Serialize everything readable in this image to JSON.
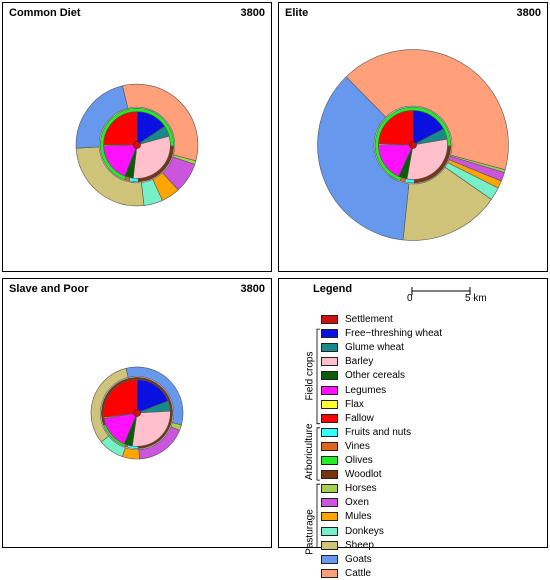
{
  "categories": [
    {
      "key": "settlement",
      "label": "Settlement",
      "color": "#cc1111"
    },
    {
      "key": "free_wheat",
      "label": "Free−threshing wheat",
      "color": "#0a10e0"
    },
    {
      "key": "glume_wheat",
      "label": "Glume wheat",
      "color": "#178a8a"
    },
    {
      "key": "barley",
      "label": "Barley",
      "color": "#ffc0cb"
    },
    {
      "key": "other_cereals",
      "label": "Other cereals",
      "color": "#0a5c0a"
    },
    {
      "key": "legumes",
      "label": "Legumes",
      "color": "#ff10ff"
    },
    {
      "key": "flax",
      "label": "Flax",
      "color": "#ffff33"
    },
    {
      "key": "fallow",
      "label": "Fallow",
      "color": "#ff0000"
    },
    {
      "key": "fruits",
      "label": "Fruits and nuts",
      "color": "#33ffff"
    },
    {
      "key": "vines",
      "label": "Vines",
      "color": "#e06620"
    },
    {
      "key": "olives",
      "label": "Olives",
      "color": "#22ee22"
    },
    {
      "key": "woodlot",
      "label": "Woodlot",
      "color": "#7a3410"
    },
    {
      "key": "horses",
      "label": "Horses",
      "color": "#a8d050"
    },
    {
      "key": "oxen",
      "label": "Oxen",
      "color": "#cc55dd"
    },
    {
      "key": "mules",
      "label": "Mules",
      "color": "#ffa500"
    },
    {
      "key": "donkeys",
      "label": "Donkeys",
      "color": "#77f0c8"
    },
    {
      "key": "sheep",
      "label": "Sheep",
      "color": "#d0c47a"
    },
    {
      "key": "goats",
      "label": "Goats",
      "color": "#6699ee"
    },
    {
      "key": "cattle",
      "label": "Cattle",
      "color": "#ffa07a"
    }
  ],
  "legend": {
    "title": "Legend",
    "scale_start": "0",
    "scale_end": "5 km",
    "groups": [
      {
        "label": "Field crops",
        "from": "free_wheat",
        "to": "fallow"
      },
      {
        "label": "Arboriculture",
        "from": "fruits",
        "to": "woodlot"
      },
      {
        "label": "Pasturage",
        "from": "horses",
        "to": "cattle"
      }
    ]
  },
  "panels": [
    {
      "title": "Common Diet",
      "year": "3800",
      "inner_radius_km": 2.9,
      "tree_ring_km": 3.2,
      "outer_radius_km": 5.3,
      "field_crops": {
        "free_wheat": 15,
        "glume_wheat": 5,
        "barley": 30,
        "other_cereals": 4,
        "legumes": 18,
        "flax": 0.5,
        "fallow": 24
      },
      "arboriculture": {
        "fruits": 4,
        "vines": 2,
        "olives": 70,
        "woodlot": 24
      },
      "pasturage": {
        "horses": 1,
        "oxen": 8,
        "mules": 5,
        "donkeys": 5,
        "sheep": 26,
        "goats": 22,
        "cattle": 33
      }
    },
    {
      "title": "Elite",
      "year": "3800",
      "inner_radius_km": 3.0,
      "tree_ring_km": 3.3,
      "outer_radius_km": 8.3,
      "field_crops": {
        "free_wheat": 17,
        "glume_wheat": 5,
        "barley": 30,
        "other_cereals": 4,
        "legumes": 18,
        "flax": 0.5,
        "fallow": 24
      },
      "arboriculture": {
        "fruits": 4,
        "vines": 2,
        "olives": 70,
        "woodlot": 24
      },
      "pasturage": {
        "horses": 0.5,
        "oxen": 1.5,
        "mules": 1.3,
        "donkeys": 2.2,
        "sheep": 17,
        "goats": 36,
        "cattle": 41.5
      }
    },
    {
      "title": "Slave and Poor",
      "year": "3800",
      "inner_radius_km": 2.9,
      "tree_ring_km": 3.1,
      "outer_radius_km": 4.0,
      "field_crops": {
        "free_wheat": 19,
        "glume_wheat": 5,
        "barley": 28,
        "other_cereals": 4,
        "legumes": 16,
        "flax": 0.5,
        "fallow": 27
      },
      "arboriculture": {
        "fruits": 5,
        "vines": 1,
        "olives": 14,
        "woodlot": 80
      },
      "pasturage": {
        "horses": 2,
        "oxen": 18,
        "mules": 6,
        "donkeys": 9,
        "sheep": 32,
        "goats": 33,
        "cattle": 0
      }
    }
  ]
}
